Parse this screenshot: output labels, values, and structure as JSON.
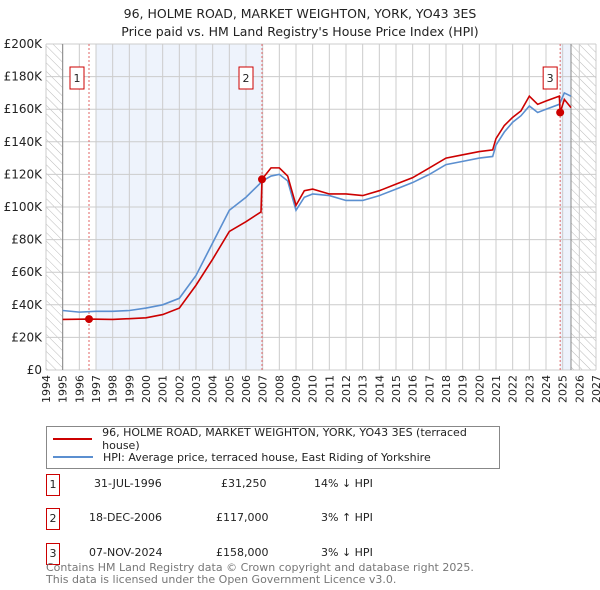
{
  "title": "96, HOLME ROAD, MARKET WEIGHTON, YORK, YO43 3ES",
  "subtitle": "Price paid vs. HM Land Registry's House Price Index (HPI)",
  "legend": {
    "red": "96, HOLME ROAD, MARKET WEIGHTON, YORK, YO43 3ES (terraced house)",
    "blue": "HPI: Average price, terraced house, East Riding of Yorkshire"
  },
  "sales": [
    {
      "n": "1",
      "date": "31-JUL-1996",
      "price": "£31,250",
      "hpi": "14% ↓ HPI"
    },
    {
      "n": "2",
      "date": "18-DEC-2006",
      "price": "£117,000",
      "hpi": "3% ↑ HPI"
    },
    {
      "n": "3",
      "date": "07-NOV-2024",
      "price": "£158,000",
      "hpi": "3% ↓ HPI"
    }
  ],
  "footer": [
    "Contains HM Land Registry data © Crown copyright and database right 2025.",
    "This data is licensed under the Open Government Licence v3.0."
  ],
  "colors": {
    "red": "#cc0000",
    "blue": "#5b8fd0",
    "shade": "#eef3fc"
  },
  "chart_data": {
    "type": "line",
    "xlim": [
      1994,
      2027
    ],
    "ylim": [
      0,
      200000
    ],
    "yticks": [
      "£0",
      "£20K",
      "£40K",
      "£60K",
      "£80K",
      "£100K",
      "£120K",
      "£140K",
      "£160K",
      "£180K",
      "£200K"
    ],
    "xticks": [
      "1994",
      "1995",
      "1996",
      "1997",
      "1998",
      "1999",
      "2000",
      "2001",
      "2002",
      "2003",
      "2004",
      "2005",
      "2006",
      "2007",
      "2008",
      "2009",
      "2010",
      "2011",
      "2012",
      "2013",
      "2014",
      "2015",
      "2016",
      "2017",
      "2018",
      "2019",
      "2020",
      "2021",
      "2022",
      "2023",
      "2024",
      "2025",
      "2026",
      "2027"
    ],
    "sale_points": [
      {
        "x": 1996.58,
        "y": 31250,
        "label": "1"
      },
      {
        "x": 2006.96,
        "y": 117000,
        "label": "2"
      },
      {
        "x": 2024.85,
        "y": 158000,
        "label": "3"
      }
    ],
    "series": [
      {
        "name": "HPI",
        "color": "#5b8fd0",
        "x": [
          1995,
          1996,
          1997,
          1998,
          1999,
          2000,
          2001,
          2002,
          2003,
          2004,
          2005,
          2006,
          2007,
          2007.5,
          2008,
          2008.5,
          2009,
          2009.5,
          2010,
          2011,
          2012,
          2013,
          2014,
          2015,
          2016,
          2017,
          2018,
          2019,
          2020,
          2020.8,
          2021,
          2021.5,
          2022,
          2022.5,
          2023,
          2023.5,
          2024,
          2024.8,
          2025.1,
          2025.5
        ],
        "y": [
          36500,
          35500,
          36000,
          36000,
          36500,
          38000,
          40000,
          44000,
          58000,
          78000,
          98000,
          106000,
          116000,
          119000,
          120000,
          116000,
          98000,
          106000,
          108000,
          107000,
          104000,
          104000,
          107000,
          111000,
          115000,
          120000,
          126000,
          128000,
          130000,
          131000,
          138000,
          146000,
          152000,
          156000,
          162000,
          158000,
          160000,
          163000,
          170000,
          168000
        ]
      },
      {
        "name": "Price paid",
        "color": "#cc0000",
        "x": [
          1995,
          1996.58,
          1998,
          2000,
          2001,
          2002,
          2003,
          2004,
          2005,
          2006,
          2006.9,
          2006.96,
          2007.5,
          2008,
          2008.5,
          2009,
          2009.5,
          2010,
          2011,
          2012,
          2013,
          2014,
          2015,
          2016,
          2017,
          2018,
          2019,
          2020,
          2020.8,
          2021,
          2021.5,
          2022,
          2022.5,
          2023,
          2023.5,
          2024,
          2024.8,
          2024.85,
          2025.1,
          2025.5
        ],
        "y": [
          31000,
          31250,
          31000,
          32000,
          34000,
          38000,
          52000,
          68000,
          85000,
          91000,
          97000,
          117000,
          124000,
          124000,
          119000,
          101000,
          110000,
          111000,
          108000,
          108000,
          107000,
          110000,
          114000,
          118000,
          124000,
          130000,
          132000,
          134000,
          135000,
          142000,
          150000,
          155000,
          159000,
          168000,
          163000,
          165000,
          168000,
          158000,
          166000,
          161000
        ]
      }
    ]
  }
}
